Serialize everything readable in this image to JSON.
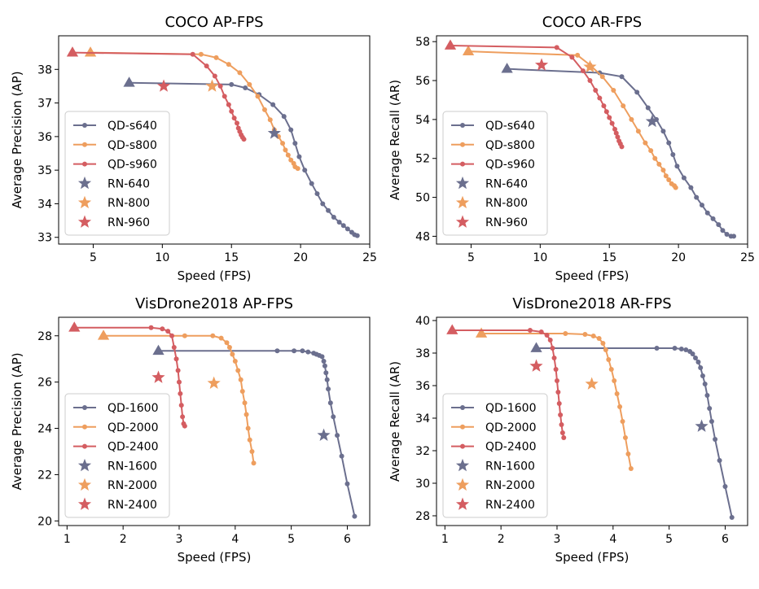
{
  "chart_data": [
    {
      "type": "line",
      "title": "COCO AP-FPS",
      "xlabel": "Speed (FPS)",
      "ylabel": "Average Precision (AP)",
      "xlim": [
        2.5,
        25
      ],
      "ylim": [
        32.8,
        39.0
      ],
      "xticks": [
        5,
        10,
        15,
        20,
        25
      ],
      "yticks": [
        33,
        34,
        35,
        36,
        37,
        38
      ],
      "legend": "center-left",
      "series": [
        {
          "name": "QD-s640",
          "color": "#6b6f8e",
          "kind": "line",
          "x": [
            7.6,
            15.0,
            16.0,
            17.0,
            18.0,
            18.8,
            19.3,
            19.6,
            19.9,
            20.3,
            20.8,
            21.2,
            21.6,
            22.0,
            22.4,
            22.8,
            23.1,
            23.4,
            23.7,
            23.9,
            24.1
          ],
          "y": [
            37.6,
            37.55,
            37.45,
            37.25,
            36.95,
            36.6,
            36.2,
            35.8,
            35.4,
            35.0,
            34.6,
            34.3,
            34.0,
            33.8,
            33.6,
            33.45,
            33.35,
            33.25,
            33.15,
            33.08,
            33.05
          ]
        },
        {
          "name": "QD-s800",
          "color": "#ee9e5e",
          "kind": "line",
          "x": [
            4.8,
            12.8,
            13.9,
            14.8,
            15.6,
            16.3,
            16.9,
            17.4,
            17.8,
            18.1,
            18.4,
            18.7,
            18.9,
            19.1,
            19.3,
            19.5,
            19.6,
            19.8
          ],
          "y": [
            38.5,
            38.45,
            38.35,
            38.15,
            37.9,
            37.55,
            37.2,
            36.8,
            36.5,
            36.2,
            36.0,
            35.8,
            35.6,
            35.45,
            35.3,
            35.2,
            35.1,
            35.05
          ]
        },
        {
          "name": "QD-s960",
          "color": "#d45d61",
          "kind": "line",
          "x": [
            3.5,
            12.2,
            13.2,
            13.8,
            14.2,
            14.5,
            14.8,
            15.0,
            15.2,
            15.4,
            15.5,
            15.6,
            15.7,
            15.8,
            15.9
          ],
          "y": [
            38.5,
            38.45,
            38.1,
            37.8,
            37.5,
            37.2,
            36.95,
            36.75,
            36.55,
            36.4,
            36.25,
            36.15,
            36.05,
            35.98,
            35.92
          ]
        },
        {
          "name": "RN-640",
          "color": "#6b6f8e",
          "kind": "star",
          "x": [
            18.1
          ],
          "y": [
            36.1
          ]
        },
        {
          "name": "RN-800",
          "color": "#ee9e5e",
          "kind": "star",
          "x": [
            13.6
          ],
          "y": [
            37.5
          ]
        },
        {
          "name": "RN-960",
          "color": "#d45d61",
          "kind": "star",
          "x": [
            10.1
          ],
          "y": [
            37.5
          ]
        }
      ]
    },
    {
      "type": "line",
      "title": "COCO AR-FPS",
      "xlabel": "Speed (FPS)",
      "ylabel": "Average Recall (AR)",
      "xlim": [
        2.5,
        25
      ],
      "ylim": [
        47.6,
        58.3
      ],
      "xticks": [
        5,
        10,
        15,
        20,
        25
      ],
      "yticks": [
        48,
        50,
        52,
        54,
        56,
        58
      ],
      "legend": "center-left",
      "series": [
        {
          "name": "QD-s640",
          "color": "#6b6f8e",
          "kind": "line",
          "x": [
            7.6,
            14.3,
            15.9,
            17.0,
            17.8,
            18.4,
            18.9,
            19.3,
            19.6,
            19.9,
            20.4,
            20.9,
            21.3,
            21.7,
            22.1,
            22.5,
            22.9,
            23.2,
            23.5,
            23.8,
            24.0
          ],
          "y": [
            56.6,
            56.4,
            56.2,
            55.4,
            54.6,
            54.0,
            53.4,
            52.8,
            52.2,
            51.6,
            51.0,
            50.5,
            50.0,
            49.6,
            49.2,
            48.9,
            48.6,
            48.3,
            48.1,
            48.0,
            48.0
          ]
        },
        {
          "name": "QD-s800",
          "color": "#ee9e5e",
          "kind": "line",
          "x": [
            4.8,
            12.7,
            13.6,
            14.5,
            15.3,
            16.0,
            16.6,
            17.1,
            17.6,
            18.0,
            18.3,
            18.6,
            18.9,
            19.1,
            19.3,
            19.5,
            19.7,
            19.8
          ],
          "y": [
            57.5,
            57.3,
            56.8,
            56.2,
            55.5,
            54.7,
            54.0,
            53.4,
            52.8,
            52.4,
            52.0,
            51.7,
            51.4,
            51.1,
            50.9,
            50.7,
            50.6,
            50.5
          ]
        },
        {
          "name": "QD-s960",
          "color": "#d45d61",
          "kind": "line",
          "x": [
            3.5,
            11.2,
            12.3,
            13.1,
            13.6,
            14.0,
            14.3,
            14.6,
            14.8,
            15.0,
            15.2,
            15.4,
            15.5,
            15.6,
            15.7,
            15.8,
            15.9
          ],
          "y": [
            57.8,
            57.7,
            57.2,
            56.5,
            56.0,
            55.5,
            55.1,
            54.7,
            54.4,
            54.1,
            53.8,
            53.5,
            53.3,
            53.1,
            52.9,
            52.75,
            52.6
          ]
        },
        {
          "name": "RN-640",
          "color": "#6b6f8e",
          "kind": "star",
          "x": [
            18.1
          ],
          "y": [
            53.9
          ]
        },
        {
          "name": "RN-800",
          "color": "#ee9e5e",
          "kind": "star",
          "x": [
            13.6
          ],
          "y": [
            56.7
          ]
        },
        {
          "name": "RN-960",
          "color": "#d45d61",
          "kind": "star",
          "x": [
            10.1
          ],
          "y": [
            56.8
          ]
        }
      ]
    },
    {
      "type": "line",
      "title": "VisDrone2018 AP-FPS",
      "xlabel": "Speed (FPS)",
      "ylabel": "Average Precision (AP)",
      "xlim": [
        0.85,
        6.4
      ],
      "ylim": [
        19.8,
        28.8
      ],
      "xticks": [
        1,
        2,
        3,
        4,
        5,
        6
      ],
      "yticks": [
        20,
        22,
        24,
        26,
        28
      ],
      "legend": "lower-left",
      "series": [
        {
          "name": "QD-1600",
          "color": "#6b6f8e",
          "kind": "line",
          "x": [
            2.63,
            4.75,
            5.05,
            5.2,
            5.3,
            5.4,
            5.45,
            5.5,
            5.55,
            5.58,
            5.6,
            5.62,
            5.64,
            5.66,
            5.7,
            5.75,
            5.82,
            5.9,
            6.0,
            6.13
          ],
          "y": [
            27.35,
            27.35,
            27.35,
            27.35,
            27.3,
            27.25,
            27.2,
            27.15,
            27.1,
            26.9,
            26.7,
            26.4,
            26.1,
            25.7,
            25.1,
            24.5,
            23.7,
            22.8,
            21.6,
            20.2
          ]
        },
        {
          "name": "QD-2000",
          "color": "#ee9e5e",
          "kind": "line",
          "x": [
            1.65,
            3.1,
            3.6,
            3.75,
            3.85,
            3.9,
            3.95,
            4.0,
            4.05,
            4.1,
            4.13,
            4.17,
            4.2,
            4.23,
            4.26,
            4.3,
            4.33
          ],
          "y": [
            28.0,
            28.0,
            28.0,
            27.9,
            27.7,
            27.5,
            27.2,
            26.9,
            26.5,
            26.1,
            25.6,
            25.1,
            24.6,
            24.0,
            23.5,
            23.0,
            22.5
          ]
        },
        {
          "name": "QD-2400",
          "color": "#d45d61",
          "kind": "line",
          "x": [
            1.13,
            2.5,
            2.7,
            2.8,
            2.87,
            2.91,
            2.95,
            2.98,
            3.0,
            3.02,
            3.04,
            3.06,
            3.08,
            3.1
          ],
          "y": [
            28.35,
            28.35,
            28.3,
            28.2,
            28.0,
            27.5,
            27.0,
            26.5,
            26.0,
            25.5,
            25.0,
            24.5,
            24.2,
            24.1
          ]
        },
        {
          "name": "RN-1600",
          "color": "#6b6f8e",
          "kind": "star",
          "x": [
            5.58
          ],
          "y": [
            23.7
          ]
        },
        {
          "name": "RN-2000",
          "color": "#ee9e5e",
          "kind": "star",
          "x": [
            3.62
          ],
          "y": [
            25.95
          ]
        },
        {
          "name": "RN-2400",
          "color": "#d45d61",
          "kind": "star",
          "x": [
            2.63
          ],
          "y": [
            26.2
          ]
        }
      ]
    },
    {
      "type": "line",
      "title": "VisDrone2018 AR-FPS",
      "xlabel": "Speed (FPS)",
      "ylabel": "Average Recall (AR)",
      "xlim": [
        0.85,
        6.4
      ],
      "ylim": [
        27.4,
        40.2
      ],
      "xticks": [
        1,
        2,
        3,
        4,
        5,
        6
      ],
      "yticks": [
        28,
        30,
        32,
        34,
        36,
        38,
        40
      ],
      "legend": "lower-left",
      "series": [
        {
          "name": "QD-1600",
          "color": "#6b6f8e",
          "kind": "line",
          "x": [
            2.63,
            4.78,
            5.1,
            5.22,
            5.3,
            5.37,
            5.42,
            5.47,
            5.52,
            5.56,
            5.6,
            5.64,
            5.68,
            5.72,
            5.76,
            5.82,
            5.9,
            6.0,
            6.12
          ],
          "y": [
            38.3,
            38.3,
            38.3,
            38.25,
            38.2,
            38.1,
            37.95,
            37.7,
            37.45,
            37.1,
            36.6,
            36.1,
            35.4,
            34.6,
            33.8,
            32.7,
            31.4,
            29.8,
            27.9
          ]
        },
        {
          "name": "QD-2000",
          "color": "#ee9e5e",
          "kind": "line",
          "x": [
            1.65,
            3.15,
            3.5,
            3.65,
            3.75,
            3.82,
            3.87,
            3.92,
            3.97,
            4.02,
            4.07,
            4.12,
            4.17,
            4.22,
            4.27,
            4.32
          ],
          "y": [
            39.2,
            39.2,
            39.15,
            39.05,
            38.9,
            38.6,
            38.2,
            37.6,
            37.0,
            36.3,
            35.5,
            34.7,
            33.8,
            32.8,
            31.8,
            30.9
          ]
        },
        {
          "name": "QD-2400",
          "color": "#d45d61",
          "kind": "line",
          "x": [
            1.13,
            2.52,
            2.72,
            2.82,
            2.88,
            2.92,
            2.95,
            2.98,
            3.0,
            3.02,
            3.04,
            3.06,
            3.08,
            3.1,
            3.12
          ],
          "y": [
            39.4,
            39.4,
            39.3,
            39.1,
            38.8,
            38.3,
            37.7,
            37.0,
            36.3,
            35.6,
            34.9,
            34.2,
            33.6,
            33.1,
            32.8
          ]
        },
        {
          "name": "RN-1600",
          "color": "#6b6f8e",
          "kind": "star",
          "x": [
            5.58
          ],
          "y": [
            33.5
          ]
        },
        {
          "name": "RN-2000",
          "color": "#ee9e5e",
          "kind": "star",
          "x": [
            3.62
          ],
          "y": [
            36.1
          ]
        },
        {
          "name": "RN-2400",
          "color": "#d45d61",
          "kind": "star",
          "x": [
            2.63
          ],
          "y": [
            37.2
          ]
        }
      ]
    }
  ]
}
